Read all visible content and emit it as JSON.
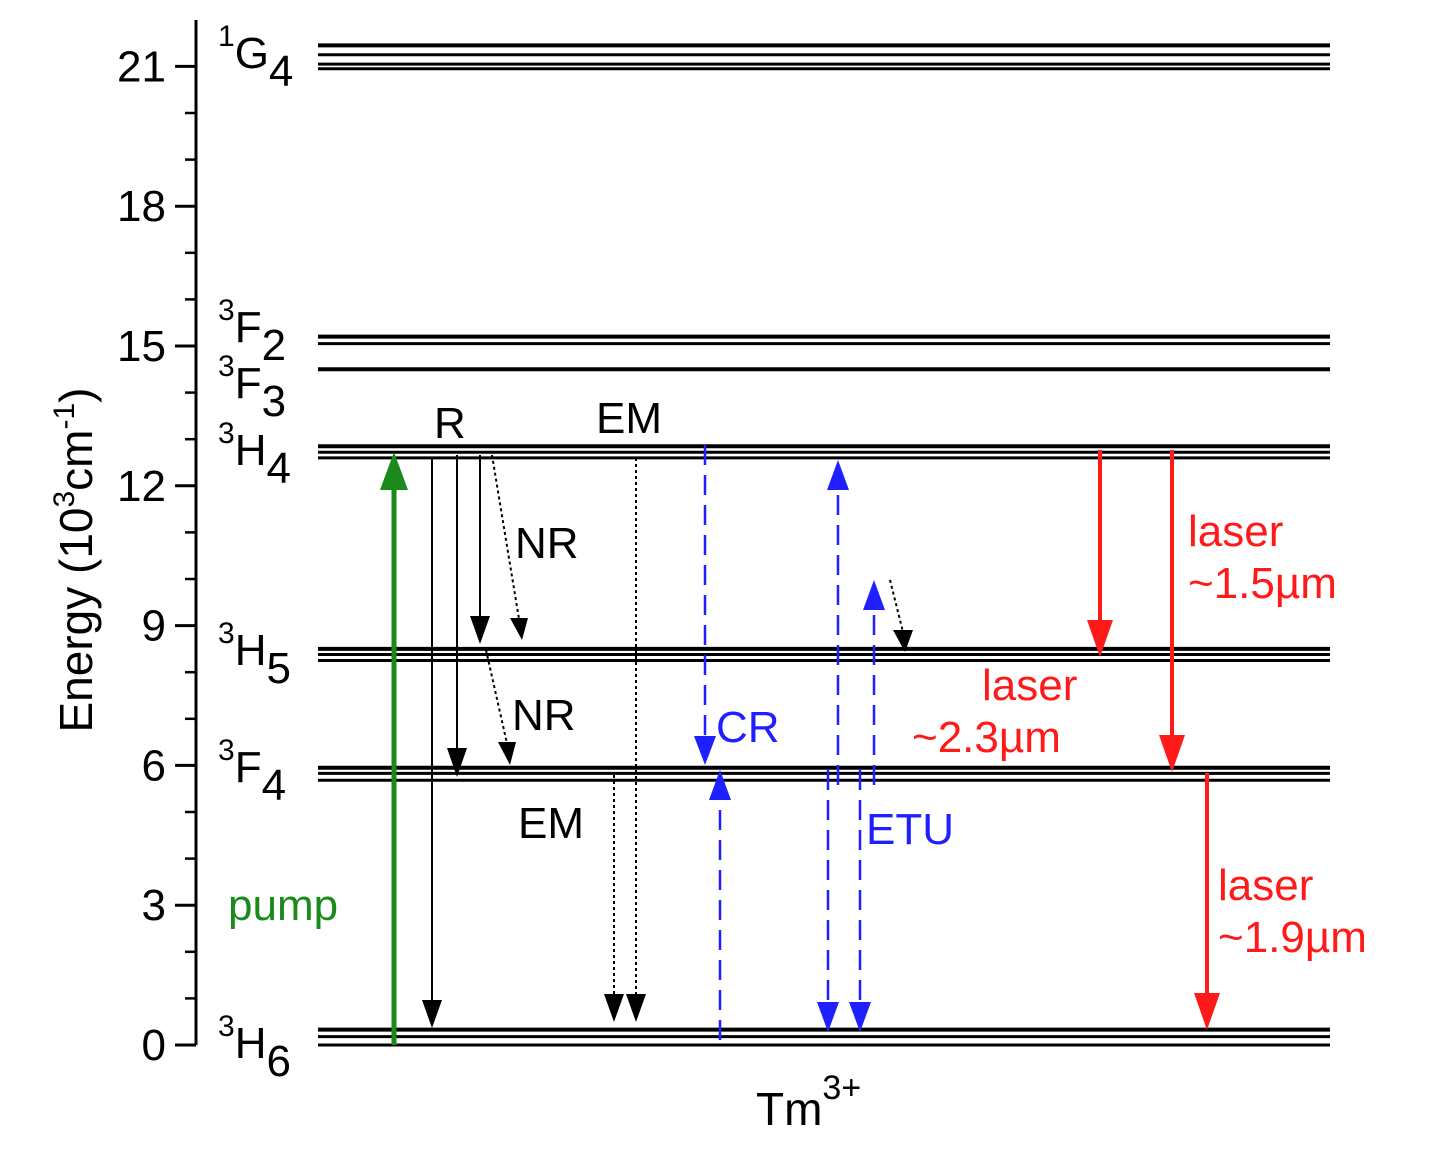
{
  "axis": {
    "ylabel_main": "Energy (10",
    "ylabel_exp1": "3",
    "ylabel_mid": "cm",
    "ylabel_exp2": "-1",
    "ylabel_end": ")",
    "ticks": [
      {
        "value": 0,
        "label": "0"
      },
      {
        "value": 3,
        "label": "3"
      },
      {
        "value": 6,
        "label": "6"
      },
      {
        "value": 9,
        "label": "9"
      },
      {
        "value": 12,
        "label": "12"
      },
      {
        "value": 15,
        "label": "15"
      },
      {
        "value": 18,
        "label": "18"
      },
      {
        "value": 21,
        "label": "21"
      }
    ],
    "range": [
      0,
      21.8
    ]
  },
  "ion": {
    "base": "Tm",
    "charge": "3+"
  },
  "levels": [
    {
      "sup": "1",
      "letter": "G",
      "sub": "4",
      "energies": [
        21.45,
        21.25,
        21.05,
        20.95
      ]
    },
    {
      "sup": "3",
      "letter": "F",
      "sub": "2",
      "energies": [
        15.2,
        15.05
      ]
    },
    {
      "sup": "3",
      "letter": "F",
      "sub": "3",
      "energies": [
        14.5
      ]
    },
    {
      "sup": "3",
      "letter": "H",
      "sub": "4",
      "energies": [
        12.85,
        12.72,
        12.6
      ]
    },
    {
      "sup": "3",
      "letter": "H",
      "sub": "5",
      "energies": [
        8.5,
        8.38,
        8.25
      ]
    },
    {
      "sup": "3",
      "letter": "F",
      "sub": "4",
      "energies": [
        5.95,
        5.83,
        5.68
      ]
    },
    {
      "sup": "3",
      "letter": "H",
      "sub": "6",
      "energies": [
        0.33,
        0.18,
        0.0
      ]
    }
  ],
  "labels": {
    "R": "R",
    "EM_top": "EM",
    "NR_1": "NR",
    "NR_2": "NR",
    "EM_bottom": "EM",
    "pump": "pump",
    "CR": "CR",
    "ETU": "ETU",
    "laser_1_5": "laser",
    "laser_1_5_wl": "~1.5µm",
    "laser_2_3": "laser",
    "laser_2_3_wl": "~2.3µm",
    "laser_1_9": "laser",
    "laser_1_9_wl": "~1.9µm"
  },
  "colors": {
    "pump": "#1a8a1a",
    "transfer": "#1f1fff",
    "laser": "#ff1a1a",
    "radiative": "#000000"
  }
}
